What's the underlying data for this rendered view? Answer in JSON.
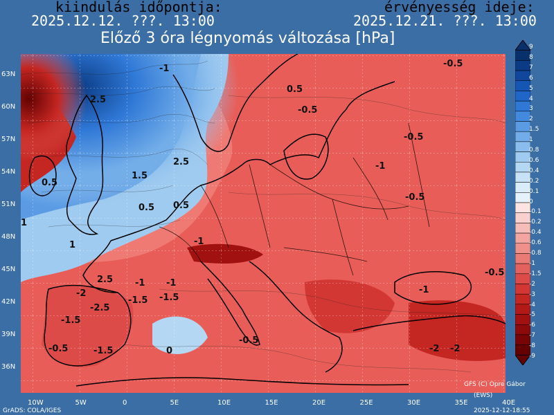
{
  "header": {
    "init_label": "kiindulás időpontja:",
    "init_value": "2025.12.12. ???. 13:00",
    "valid_label": "érvényesség ideje:",
    "valid_value": "2025.12.21. ???. 13:00",
    "title": "Előző 3 óra légnyomás változása [hPa]"
  },
  "axes": {
    "lat_ticks": [
      "63N",
      "60N",
      "57N",
      "54N",
      "51N",
      "48N",
      "45N",
      "42N",
      "39N",
      "36N"
    ],
    "lon_ticks": [
      "10W",
      "5W",
      "0",
      "5E",
      "10E",
      "15E",
      "20E",
      "25E",
      "30E",
      "35E",
      "40E"
    ]
  },
  "colorbar": {
    "levels": [
      "9",
      "8",
      "7",
      "6",
      "5",
      "4",
      "3",
      "2",
      "1.5",
      "1",
      "0.8",
      "0.6",
      "0.4",
      "0.2",
      "0.1",
      "0",
      "-0.1",
      "-0.2",
      "-0.4",
      "-0.6",
      "-0.8",
      "-1",
      "-1.5",
      "-2",
      "-3",
      "-4",
      "-5",
      "-6",
      "-7",
      "-8",
      "-9"
    ],
    "colors": [
      "#08306b",
      "#0b3b84",
      "#10479c",
      "#1656b3",
      "#1f66c8",
      "#2f78d6",
      "#4389de",
      "#5a9be4",
      "#72ade9",
      "#8abded",
      "#a0cbf0",
      "#b4d7f3",
      "#c7e2f6",
      "#d8ecf9",
      "#e6f2fb",
      "#fbe4e2",
      "#f9d0cd",
      "#f6bcb7",
      "#f3a6a0",
      "#ef908a",
      "#ea7a74",
      "#e4625d",
      "#dc4b47",
      "#d23733",
      "#c42622",
      "#b31a17",
      "#a0110f",
      "#8c0a09",
      "#770505",
      "#640202"
    ]
  },
  "contour_labels": [
    "2.5",
    "2.5",
    "1.5",
    "1",
    "0.5",
    "1",
    "0.5",
    "-1",
    "2.5",
    "0.5",
    "-0.5",
    "-0.5",
    "-1",
    "-0.5",
    "-1",
    "-2",
    "-2.5",
    "-1.5",
    "-1.5",
    "-0.5",
    "-1.5",
    "-1",
    "-0.5",
    "-0.5",
    "0",
    "-0.5",
    "-1",
    "0.5",
    "-1",
    "-2",
    "-2",
    "-1.5"
  ],
  "footer": {
    "left": "GrADS: COLA/IGES",
    "right": "2025-12-12-18:55",
    "credit_line1": "GFS (C) Opre Gábor",
    "credit_line2": "(EWS)"
  }
}
